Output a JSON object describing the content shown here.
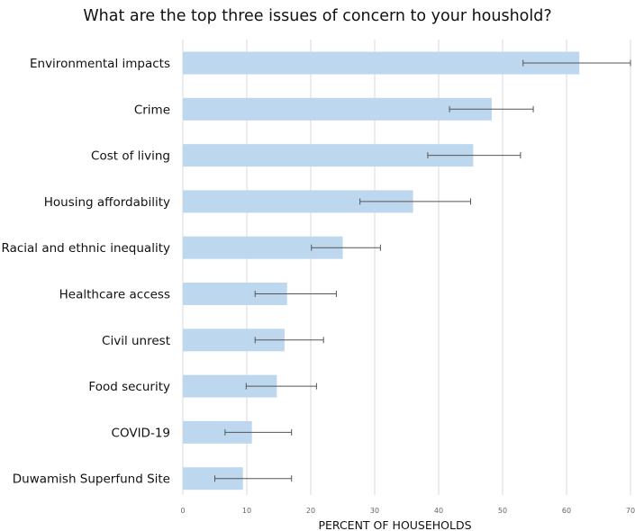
{
  "chart_data": {
    "type": "bar",
    "orientation": "horizontal",
    "title": "What are the top three issues of concern to your houshold?",
    "xlabel": "PERCENT OF HOUSEHOLDS",
    "ylabel": "",
    "xlim": [
      0,
      70
    ],
    "xticks": [
      0,
      10,
      20,
      30,
      40,
      50,
      60,
      70
    ],
    "grid": true,
    "categories": [
      "Environmental impacts",
      "Crime",
      "Cost of living",
      "Housing affordability",
      "Racial and ethnic inequality",
      "Healthcare access",
      "Civil unrest",
      "Food security",
      "COVID-19",
      "Duwamish Superfund Site"
    ],
    "values": [
      62,
      48.3,
      45.4,
      36,
      25,
      16.3,
      15.9,
      14.7,
      10.8,
      9.4
    ],
    "error_low": [
      53.2,
      41.7,
      38.3,
      27.7,
      20.1,
      11.3,
      11.3,
      9.9,
      6.6,
      5
    ],
    "error_high": [
      70,
      54.8,
      52.8,
      45,
      30.9,
      24,
      22,
      20.9,
      17,
      17
    ],
    "colors": {
      "bar": "#bdd7ee",
      "error_bar": "#555555",
      "grid": "#d9d9d9"
    }
  }
}
